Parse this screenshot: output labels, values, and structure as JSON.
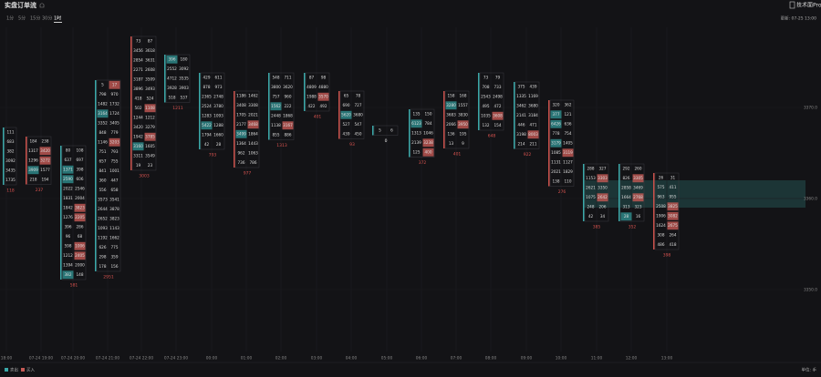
{
  "header": {
    "title": "实盘订单流",
    "brand": "技术面Pro",
    "updated": "更新: 07-25 13:00"
  },
  "tabs": [
    "1分",
    "5分",
    "15分",
    "30分",
    "1时"
  ],
  "active_tab": 4,
  "columns": [
    {
      "cells": [
        [
          111
        ],
        [
          683
        ],
        [
          382
        ],
        [
          3092
        ],
        [
          3435
        ],
        [
          1735
        ]
      ],
      "delta": 118
    },
    {
      "cells": [
        [
          184,
          238
        ],
        [
          1317,
          3420
        ],
        [
          1296,
          3272
        ],
        [
          3909,
          1577
        ],
        [
          218,
          194
        ]
      ],
      "delta": 237
    },
    {
      "cells": [
        [
          80,
          108
        ],
        [
          637,
          697
        ],
        [
          1371,
          398
        ],
        [
          2590,
          606
        ],
        [
          2022,
          2546
        ],
        [
          1831,
          2004
        ],
        [
          1842,
          3823
        ],
        [
          1276,
          2205
        ],
        [
          396,
          286
        ],
        [
          96,
          68
        ],
        [
          598,
          1006
        ],
        [
          1212,
          2405
        ],
        [
          1394,
          2000
        ],
        [
          382,
          148
        ]
      ],
      "delta": 581
    },
    {
      "cells": [
        [
          5,
          17
        ],
        [
          798,
          970
        ],
        [
          1482,
          1732
        ],
        [
          3164,
          1724
        ],
        [
          3352,
          3405
        ],
        [
          848,
          779
        ],
        [
          1146,
          3203
        ],
        [
          751,
          793
        ],
        [
          657,
          755
        ],
        [
          841,
          1001
        ],
        [
          360,
          447
        ],
        [
          556,
          658
        ],
        [
          3573,
          3541
        ],
        [
          2644,
          3878
        ],
        [
          2652,
          3823
        ],
        [
          1093,
          1143
        ],
        [
          1192,
          1662
        ],
        [
          626,
          775
        ],
        [
          298,
          359
        ],
        [
          178,
          156
        ]
      ],
      "delta": 2951
    },
    {
      "cells": [
        [
          73,
          87
        ],
        [
          3456,
          3618
        ],
        [
          2854,
          3631
        ],
        [
          2271,
          2608
        ],
        [
          3187,
          3509
        ],
        [
          3896,
          3493
        ],
        [
          418,
          524
        ],
        [
          502,
          1108
        ],
        [
          1244,
          1212
        ],
        [
          3420,
          3279
        ],
        [
          1942,
          3785
        ],
        [
          3160,
          1605
        ],
        [
          3311,
          3549
        ],
        [
          19,
          23
        ]
      ],
      "delta": 3003
    },
    {
      "cells": [
        [
          396,
          180
        ],
        [
          2552,
          3092
        ],
        [
          4712,
          3535
        ],
        [
          3928,
          3903
        ],
        [
          518,
          537
        ]
      ],
      "delta": 1211
    },
    {
      "cells": [
        [
          429,
          611
        ],
        [
          878,
          973
        ],
        [
          2365,
          2748
        ],
        [
          2524,
          3780
        ],
        [
          1283,
          1093
        ],
        [
          5422,
          1288
        ],
        [
          1794,
          1660
        ],
        [
          42,
          28
        ]
      ],
      "delta": 793
    },
    {
      "cells": [
        [
          1186,
          1462
        ],
        [
          3408,
          3308
        ],
        [
          1705,
          2021
        ],
        [
          2177,
          3468
        ],
        [
          3499,
          1864
        ],
        [
          1364,
          1443
        ],
        [
          962,
          1063
        ],
        [
          736,
          786
        ]
      ],
      "delta": 977
    },
    {
      "cells": [
        [
          548,
          711
        ],
        [
          3800,
          3620
        ],
        [
          757,
          960
        ],
        [
          1562,
          222
        ],
        [
          2448,
          1868
        ],
        [
          1138,
          3167
        ],
        [
          855,
          886
        ]
      ],
      "delta": 1313
    },
    {
      "cells": [
        [
          87,
          98
        ],
        [
          4809,
          4880
        ],
        [
          1988,
          3570
        ],
        [
          422,
          492
        ]
      ],
      "delta": 401
    },
    {
      "cells": [
        [
          65,
          78
        ],
        [
          690,
          727
        ],
        [
          5620,
          3680
        ],
        [
          527,
          547
        ],
        [
          439,
          450
        ]
      ],
      "delta": 93
    },
    {
      "cells": [
        [
          5,
          6
        ]
      ],
      "delta": 0
    },
    {
      "cells": [
        [
          135,
          150
        ],
        [
          6123,
          784
        ],
        [
          1313,
          1046
        ],
        [
          2139,
          3238
        ],
        [
          125,
          400
        ]
      ],
      "delta": 372
    },
    {
      "cells": [
        [
          158,
          168
        ],
        [
          3280,
          1557
        ],
        [
          3683,
          3830
        ],
        [
          2066,
          3950
        ],
        [
          136,
          195
        ],
        [
          13,
          9
        ]
      ],
      "delta": 401
    },
    {
      "cells": [
        [
          73,
          79
        ],
        [
          708,
          733
        ],
        [
          2543,
          2498
        ],
        [
          495,
          472
        ],
        [
          1035,
          3608
        ],
        [
          132,
          154
        ]
      ],
      "delta": 648
    },
    {
      "cells": [
        [
          375,
          439
        ],
        [
          1335,
          1169
        ],
        [
          3462,
          3680
        ],
        [
          2141,
          3184
        ],
        [
          446,
          471
        ],
        [
          3198,
          8003
        ],
        [
          214,
          211
        ]
      ],
      "delta": 922
    },
    {
      "cells": [
        [
          320,
          362
        ],
        [
          377,
          121
        ],
        [
          6426,
          636
        ],
        [
          778,
          754
        ],
        [
          3179,
          1405
        ],
        [
          1085,
          3119
        ],
        [
          1131,
          1127
        ],
        [
          2021,
          1829
        ],
        [
          138,
          110
        ]
      ],
      "delta": 276
    },
    {
      "cells": [
        [
          288,
          327
        ],
        [
          1153,
          3303
        ],
        [
          2621,
          3350
        ],
        [
          1075,
          2642
        ],
        [
          248,
          206
        ],
        [
          42,
          34
        ]
      ],
      "delta": 385
    },
    {
      "cells": [
        [
          292,
          260
        ],
        [
          826,
          3305
        ],
        [
          2858,
          3469
        ],
        [
          1664,
          2768
        ],
        [
          313,
          323
        ],
        [
          28,
          16
        ]
      ],
      "delta": 352
    },
    {
      "cells": [
        [
          26,
          31
        ],
        [
          575,
          411
        ],
        [
          963,
          955
        ],
        [
          2508,
          3825
        ],
        [
          1906,
          3082
        ],
        [
          1624,
          2675
        ],
        [
          308,
          264
        ],
        [
          486,
          418
        ]
      ],
      "delta": 398
    }
  ],
  "x_labels": [
    "18:00",
    "07-24 19:00",
    "07-24 20:00",
    "07-24 21:00",
    "07-24 22:00",
    "07-24 23:00",
    "00:00",
    "01:00",
    "02:00",
    "03:00",
    "04:00",
    "05:00",
    "06:00",
    "07:00",
    "08:00",
    "09:00",
    "10:00",
    "11:00",
    "12:00",
    "13:00"
  ],
  "y_labels": [
    "3370.0",
    "3360.0",
    "3350.0"
  ],
  "legend": [
    "卖出",
    "买入"
  ],
  "unit": "单位: 手"
}
